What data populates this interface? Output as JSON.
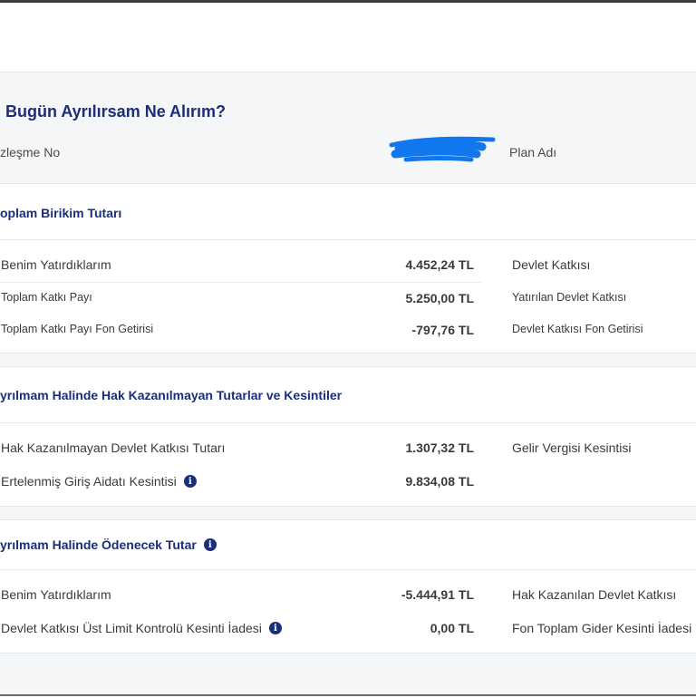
{
  "page": {
    "title": "Bugün Ayrılırsam Ne Alırım?",
    "contract_label": "zleşme No",
    "plan_label": "Plan Adı"
  },
  "sections": [
    {
      "title": "oplam Birikim Tutarı",
      "rows": [
        {
          "label": "Benim Yatırdıklarım",
          "value": "4.452,24 TL",
          "right_label": "Devlet Katkısı"
        },
        {
          "label": "Toplam Katkı Payı",
          "value": "5.250,00 TL",
          "right_label": "Yatırılan Devlet Katkısı"
        },
        {
          "label": "Toplam Katkı Payı Fon Getirisi",
          "value": "-797,76 TL",
          "right_label": "Devlet Katkısı Fon Getirisi"
        }
      ]
    },
    {
      "title": "yrılmam Halinde Hak Kazanılmayan Tutarlar ve Kesintiler",
      "rows": [
        {
          "label": "Hak Kazanılmayan Devlet Katkısı Tutarı",
          "value": "1.307,32 TL",
          "right_label": "Gelir Vergisi Kesintisi"
        },
        {
          "label": "Ertelenmiş Giriş Aidatı Kesintisi",
          "value": "9.834,08 TL",
          "right_label": ""
        }
      ]
    },
    {
      "title": "yrılmam Halinde Ödenecek Tutar",
      "rows": [
        {
          "label": "Benim Yatırdıklarım",
          "value": "-5.444,91 TL",
          "right_label": "Hak Kazanılan Devlet Katkısı"
        },
        {
          "label": "Devlet Katkısı Üst Limit Kontrolü Kesinti İadesi",
          "value": "0,00 TL",
          "right_label": "Fon Toplam Gider Kesinti İadesi"
        }
      ]
    }
  ],
  "icons": {
    "info": "info-icon",
    "redaction": "redaction-scribble"
  },
  "colors": {
    "accent": "#1a2e7a",
    "redaction": "#1177ee",
    "panel_bg": "#f5f6f8"
  }
}
